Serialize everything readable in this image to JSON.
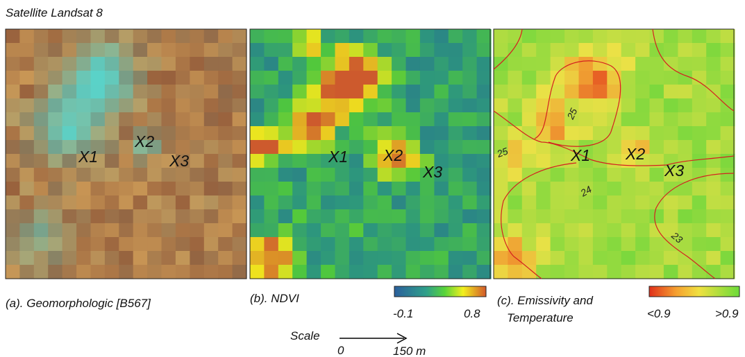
{
  "title": "Satellite Landsat 8",
  "panels": [
    {
      "caption": "(a). Geomorphologic [B567]",
      "points": [
        "X1",
        "X2",
        "X3"
      ]
    },
    {
      "caption": "(b). NDVI",
      "points": [
        "X1",
        "X2",
        "X3"
      ],
      "colorbar": [
        "-0.1",
        "0.8"
      ]
    },
    {
      "caption_lines": [
        "(c). Emissivity and",
        "Temperature"
      ],
      "points": [
        "X1",
        "X2",
        "X3"
      ],
      "colorbar": [
        "<0.9",
        ">0.9"
      ],
      "contours": [
        "25",
        "25",
        "24",
        "23"
      ]
    }
  ],
  "scale": {
    "label": "Scale",
    "start": "0",
    "end": "150 m"
  }
}
